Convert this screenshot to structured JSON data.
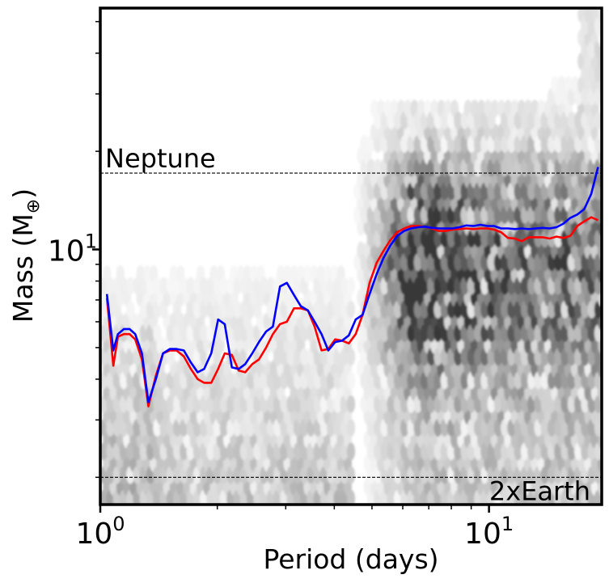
{
  "chart_data": {
    "type": "line",
    "background": "hexbin-density",
    "xscale": "log",
    "yscale": "log",
    "xlim": [
      1.0,
      19.5
    ],
    "ylim": [
      1.65,
      55
    ],
    "xlabel": "Period (days)",
    "ylabel_main": "Mass (M",
    "ylabel_sub": "⊕",
    "ylabel_close": ")",
    "xticks": [
      {
        "value": 1,
        "base": "10",
        "exp": "0"
      },
      {
        "value": 10,
        "base": "10",
        "exp": "1"
      }
    ],
    "yticks": [
      {
        "value": 10,
        "base": "10",
        "exp": "1"
      }
    ],
    "reference_lines": [
      {
        "name": "Neptune",
        "y": 17.15,
        "label": "Neptune",
        "label_anchor": "left"
      },
      {
        "name": "2xEarth",
        "y": 2.0,
        "label": "2xEarth",
        "label_anchor": "right"
      }
    ],
    "colors": {
      "red": "#ff0000",
      "blue": "#0000ff",
      "density": "#555555"
    },
    "series": [
      {
        "name": "red",
        "color": "#ff0000",
        "x": [
          1.04,
          1.08,
          1.11,
          1.15,
          1.19,
          1.23,
          1.28,
          1.33,
          1.39,
          1.45,
          1.51,
          1.57,
          1.64,
          1.71,
          1.78,
          1.85,
          1.93,
          2.01,
          2.09,
          2.18,
          2.27,
          2.36,
          2.46,
          2.56,
          2.67,
          2.78,
          2.9,
          3.02,
          3.15,
          3.28,
          3.42,
          3.56,
          3.71,
          3.86,
          4.02,
          4.19,
          4.36,
          4.54,
          4.73,
          4.93,
          5.14,
          5.35,
          5.58,
          5.81,
          6.05,
          6.3,
          6.57,
          6.84,
          7.13,
          7.43,
          7.74,
          8.06,
          8.4,
          8.75,
          9.12,
          9.5,
          9.9,
          10.31,
          10.74,
          11.19,
          11.66,
          12.15,
          12.66,
          13.19,
          13.74,
          14.32,
          14.92,
          15.54,
          16.19,
          16.87,
          17.58,
          18.32,
          19.08
        ],
        "y": [
          7.1,
          4.4,
          5.4,
          5.5,
          5.5,
          5.3,
          4.6,
          3.3,
          4.1,
          4.8,
          4.9,
          4.9,
          4.7,
          4.3,
          4.0,
          3.9,
          3.9,
          4.3,
          4.8,
          4.75,
          4.25,
          4.2,
          4.45,
          4.6,
          5.0,
          5.5,
          5.9,
          6.0,
          6.6,
          6.6,
          6.5,
          5.8,
          4.9,
          4.95,
          5.3,
          5.25,
          5.15,
          5.5,
          6.3,
          7.9,
          9.1,
          9.9,
          10.7,
          11.3,
          11.6,
          11.8,
          11.8,
          11.75,
          11.6,
          11.4,
          11.4,
          11.5,
          11.55,
          11.6,
          11.55,
          11.6,
          11.6,
          11.5,
          11.3,
          10.85,
          10.8,
          10.6,
          10.9,
          10.9,
          10.9,
          10.8,
          10.95,
          10.85,
          11.0,
          11.8,
          12.2,
          12.55,
          12.3
        ]
      },
      {
        "name": "blue",
        "color": "#0000ff",
        "x": [
          1.04,
          1.08,
          1.11,
          1.15,
          1.19,
          1.23,
          1.28,
          1.33,
          1.39,
          1.45,
          1.51,
          1.57,
          1.64,
          1.71,
          1.78,
          1.85,
          1.93,
          2.01,
          2.09,
          2.18,
          2.27,
          2.36,
          2.46,
          2.56,
          2.67,
          2.78,
          2.9,
          3.02,
          3.15,
          3.28,
          3.42,
          3.56,
          3.71,
          3.86,
          4.02,
          4.19,
          4.36,
          4.54,
          4.73,
          4.93,
          5.14,
          5.35,
          5.58,
          5.81,
          6.05,
          6.3,
          6.57,
          6.84,
          7.13,
          7.43,
          7.74,
          8.06,
          8.4,
          8.75,
          9.12,
          9.5,
          9.9,
          10.31,
          10.74,
          11.19,
          11.66,
          12.15,
          12.66,
          13.19,
          13.74,
          14.32,
          14.92,
          15.54,
          16.19,
          16.87,
          17.58,
          18.32,
          19.08
        ],
        "y": [
          7.3,
          4.9,
          5.5,
          5.7,
          5.7,
          5.5,
          4.8,
          3.4,
          4.0,
          4.8,
          4.95,
          4.95,
          4.9,
          4.5,
          4.2,
          4.3,
          4.8,
          6.1,
          5.9,
          4.35,
          4.3,
          4.45,
          4.8,
          5.2,
          5.6,
          5.8,
          7.7,
          7.9,
          7.25,
          6.7,
          6.5,
          6.0,
          5.5,
          4.9,
          5.2,
          5.25,
          5.45,
          6.1,
          6.3,
          7.3,
          8.4,
          9.4,
          10.3,
          11.0,
          11.4,
          11.6,
          11.7,
          11.75,
          11.65,
          11.6,
          11.6,
          11.6,
          11.7,
          11.85,
          11.8,
          11.9,
          11.8,
          11.8,
          11.6,
          11.6,
          11.55,
          11.6,
          11.55,
          11.6,
          11.65,
          11.6,
          11.7,
          12.0,
          12.5,
          12.8,
          13.3,
          14.8,
          17.9
        ]
      }
    ]
  }
}
